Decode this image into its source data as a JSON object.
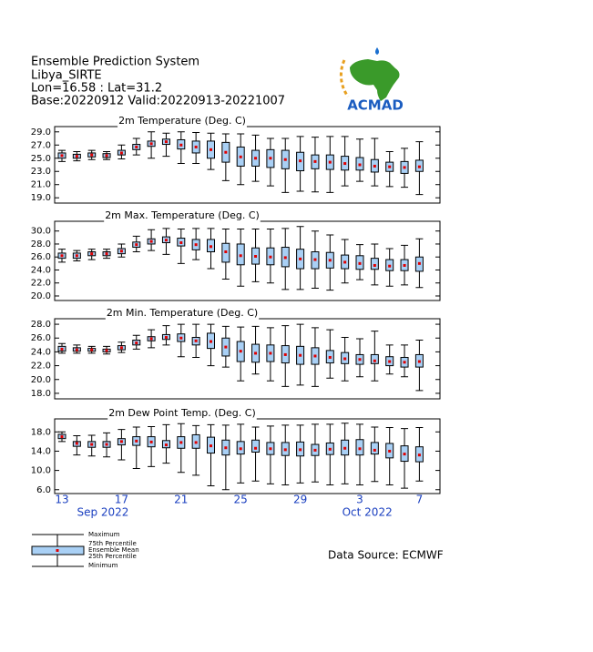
{
  "header": {
    "lines": [
      "Ensemble Prediction System",
      "Libya_SIRTE",
      "Lon=16.58 : Lat=31.2",
      "Base:20220912 Valid:20220913-20221007"
    ]
  },
  "logo_text": "ACMAD",
  "chart_data": [
    {
      "type": "box",
      "title": "2m Temperature (Deg. C)",
      "ylim": [
        18.2,
        29.8
      ],
      "yticks": [
        {
          "value": 19,
          "label": "19.0"
        },
        {
          "value": 21,
          "label": "21.0"
        },
        {
          "value": 23,
          "label": "23.0"
        },
        {
          "value": 25,
          "label": "25.0"
        },
        {
          "value": 27,
          "label": "27.0"
        },
        {
          "value": 29,
          "label": "29.0"
        }
      ],
      "box_color": "#a9d0f5",
      "mean_color": "#e00000",
      "min": [
        24.5,
        24.6,
        24.8,
        24.8,
        24.9,
        25.5,
        25.0,
        25.3,
        24.2,
        24.2,
        23.3,
        21.6,
        21.0,
        21.5,
        20.8,
        19.8,
        20.0,
        19.9,
        19.8,
        20.8,
        21.5,
        20.8,
        20.7,
        20.6,
        19.5
      ],
      "q1": [
        25.0,
        25.0,
        25.2,
        25.1,
        25.5,
        26.3,
        26.8,
        27.1,
        26.4,
        25.8,
        25.0,
        24.4,
        23.8,
        23.8,
        23.6,
        23.4,
        23.1,
        23.4,
        23.3,
        23.2,
        23.2,
        22.9,
        23.0,
        22.7,
        23.0
      ],
      "mean": [
        25.4,
        25.3,
        25.5,
        25.4,
        25.8,
        26.7,
        27.2,
        27.5,
        27.0,
        26.7,
        26.3,
        25.9,
        25.2,
        25.0,
        25.0,
        24.8,
        24.6,
        24.5,
        24.4,
        24.2,
        24.0,
        23.8,
        23.7,
        23.6,
        23.7
      ],
      "q3": [
        25.8,
        25.6,
        25.8,
        25.7,
        26.2,
        27.1,
        27.6,
        27.9,
        27.8,
        27.6,
        27.6,
        27.4,
        26.7,
        26.2,
        26.3,
        26.2,
        25.9,
        25.5,
        25.5,
        25.3,
        25.1,
        24.8,
        24.4,
        24.5,
        24.7
      ],
      "max": [
        26.2,
        26.0,
        26.2,
        26.0,
        27.0,
        28.0,
        29.0,
        28.8,
        29.0,
        28.9,
        28.8,
        28.7,
        28.7,
        28.5,
        28.0,
        28.0,
        28.3,
        28.2,
        28.3,
        28.3,
        27.9,
        28.0,
        26.0,
        26.5,
        27.5
      ]
    },
    {
      "type": "box",
      "title": "2m Max. Temperature (Deg. C)",
      "ylim": [
        19.3,
        31.5
      ],
      "yticks": [
        {
          "value": 20,
          "label": "20.0"
        },
        {
          "value": 22,
          "label": "22.0"
        },
        {
          "value": 24,
          "label": "24.0"
        },
        {
          "value": 26,
          "label": "26.0"
        },
        {
          "value": 28,
          "label": "28.0"
        },
        {
          "value": 30,
          "label": "30.0"
        }
      ],
      "box_color": "#a9d0f5",
      "mean_color": "#e00000",
      "min": [
        25.2,
        25.4,
        25.6,
        25.8,
        26.0,
        26.8,
        27.0,
        26.4,
        25.0,
        25.6,
        24.2,
        22.6,
        21.5,
        22.2,
        22.0,
        21.0,
        21.0,
        21.2,
        20.9,
        22.0,
        22.5,
        21.7,
        21.5,
        21.7,
        21.3
      ],
      "q1": [
        25.8,
        25.8,
        26.2,
        26.2,
        26.5,
        27.5,
        28.0,
        28.2,
        27.7,
        27.1,
        26.8,
        25.2,
        24.8,
        24.9,
        24.8,
        24.5,
        24.2,
        24.2,
        24.3,
        24.2,
        24.1,
        24.1,
        23.9,
        23.9,
        23.8
      ],
      "mean": [
        26.2,
        26.2,
        26.5,
        26.5,
        26.9,
        27.9,
        28.4,
        28.6,
        28.2,
        27.9,
        27.6,
        26.8,
        26.2,
        26.1,
        26.0,
        25.9,
        25.7,
        25.6,
        25.5,
        25.2,
        25.0,
        24.7,
        24.6,
        24.7,
        25.0
      ],
      "q3": [
        26.6,
        26.6,
        26.8,
        26.8,
        27.3,
        28.3,
        28.8,
        29.1,
        28.9,
        28.7,
        28.7,
        28.1,
        28.0,
        27.4,
        27.4,
        27.5,
        27.2,
        26.8,
        26.7,
        26.3,
        26.2,
        25.8,
        25.6,
        25.6,
        26.0
      ],
      "max": [
        27.2,
        27.0,
        27.2,
        27.2,
        28.0,
        29.2,
        30.2,
        30.4,
        30.3,
        30.4,
        30.4,
        30.3,
        30.3,
        30.3,
        30.3,
        30.4,
        30.7,
        30.0,
        29.4,
        28.7,
        27.9,
        28.0,
        27.3,
        27.8,
        28.8
      ]
    },
    {
      "type": "box",
      "title": "2m Min. Temperature (Deg. C)",
      "ylim": [
        17.2,
        28.8
      ],
      "yticks": [
        {
          "value": 18,
          "label": "18.0"
        },
        {
          "value": 20,
          "label": "20.0"
        },
        {
          "value": 22,
          "label": "22.0"
        },
        {
          "value": 24,
          "label": "24.0"
        },
        {
          "value": 26,
          "label": "26.0"
        },
        {
          "value": 28,
          "label": "28.0"
        }
      ],
      "box_color": "#a9d0f5",
      "mean_color": "#e00000",
      "min": [
        23.8,
        23.8,
        23.8,
        23.7,
        23.9,
        24.4,
        24.6,
        25.0,
        23.3,
        23.2,
        22.0,
        21.8,
        19.8,
        20.8,
        19.8,
        19.0,
        19.2,
        19.0,
        20.2,
        19.8,
        20.4,
        19.8,
        20.8,
        20.4,
        18.4
      ],
      "q1": [
        24.1,
        24.1,
        24.1,
        24.0,
        24.3,
        25.0,
        25.6,
        25.8,
        25.5,
        25.0,
        24.5,
        23.4,
        22.6,
        22.5,
        22.6,
        22.4,
        22.2,
        22.2,
        22.4,
        22.3,
        22.2,
        22.3,
        22.0,
        21.8,
        21.8
      ],
      "mean": [
        24.4,
        24.3,
        24.3,
        24.2,
        24.6,
        25.3,
        25.9,
        26.1,
        26.0,
        25.6,
        25.5,
        24.7,
        24.1,
        23.8,
        23.8,
        23.6,
        23.5,
        23.4,
        23.2,
        23.0,
        22.9,
        22.7,
        22.6,
        22.5,
        22.6
      ],
      "q3": [
        24.8,
        24.6,
        24.5,
        24.4,
        24.9,
        25.7,
        26.2,
        26.5,
        26.6,
        26.1,
        26.7,
        26.0,
        25.5,
        25.1,
        25.0,
        24.9,
        24.8,
        24.6,
        24.2,
        23.9,
        23.6,
        23.6,
        23.3,
        23.2,
        23.6
      ],
      "max": [
        25.2,
        25.0,
        24.8,
        24.8,
        25.4,
        26.4,
        27.2,
        27.8,
        28.0,
        28.0,
        28.0,
        27.7,
        27.6,
        27.7,
        27.5,
        27.8,
        28.0,
        27.5,
        27.2,
        26.1,
        25.9,
        27.0,
        25.0,
        25.0,
        25.7
      ]
    },
    {
      "type": "box",
      "title": "2m Dew Point Temp. (Deg. C)",
      "ylim": [
        5.2,
        20.7
      ],
      "yticks": [
        {
          "value": 6,
          "label": "6.0"
        },
        {
          "value": 10,
          "label": "10.0"
        },
        {
          "value": 14,
          "label": "14.0"
        },
        {
          "value": 18,
          "label": "18.0"
        }
      ],
      "box_color": "#a9d0f5",
      "mean_color": "#e00000",
      "min": [
        16.0,
        13.2,
        13.0,
        12.8,
        12.2,
        10.4,
        10.8,
        11.5,
        9.6,
        9.0,
        6.8,
        6.0,
        7.4,
        7.8,
        7.2,
        7.0,
        7.4,
        7.6,
        7.0,
        7.2,
        7.0,
        7.7,
        7.0,
        6.3,
        7.8
      ],
      "q1": [
        16.6,
        15.0,
        14.8,
        14.8,
        15.3,
        15.2,
        14.9,
        14.7,
        14.6,
        14.6,
        13.6,
        13.2,
        13.4,
        13.8,
        13.3,
        13.1,
        13.0,
        13.1,
        13.3,
        13.2,
        13.2,
        13.4,
        12.6,
        11.9,
        11.8
      ],
      "mean": [
        17.0,
        15.6,
        15.4,
        15.4,
        16.0,
        16.1,
        15.9,
        15.3,
        15.8,
        15.8,
        15.1,
        14.7,
        14.5,
        14.6,
        14.5,
        14.3,
        14.3,
        14.2,
        14.4,
        14.6,
        14.5,
        14.2,
        14.0,
        13.4,
        13.2
      ],
      "q3": [
        17.5,
        16.0,
        16.0,
        16.0,
        16.6,
        17.0,
        17.0,
        16.2,
        17.0,
        17.4,
        16.9,
        16.3,
        16.0,
        16.3,
        15.8,
        15.8,
        15.9,
        15.4,
        15.7,
        16.3,
        16.4,
        15.8,
        15.6,
        15.1,
        14.9
      ],
      "max": [
        18.0,
        17.2,
        17.3,
        17.8,
        18.5,
        19.0,
        19.1,
        19.5,
        19.7,
        19.3,
        19.5,
        19.4,
        19.6,
        19.0,
        19.2,
        19.4,
        19.4,
        19.6,
        19.6,
        19.8,
        19.6,
        19.0,
        18.9,
        18.7,
        18.9
      ],
      "categories": [
        "13",
        null,
        null,
        null,
        "17",
        null,
        null,
        null,
        "21",
        null,
        null,
        null,
        "25",
        null,
        null,
        null,
        "29",
        null,
        null,
        null,
        "3",
        null,
        null,
        null,
        "7"
      ],
      "month_labels": [
        "Sep 2022",
        "Oct 2022"
      ]
    }
  ],
  "legend": {
    "items": [
      "Maximum",
      "75th Percentile",
      "Ensemble Mean",
      "25th Percentile",
      "Minimum"
    ]
  },
  "source": "Data Source: ECMWF"
}
